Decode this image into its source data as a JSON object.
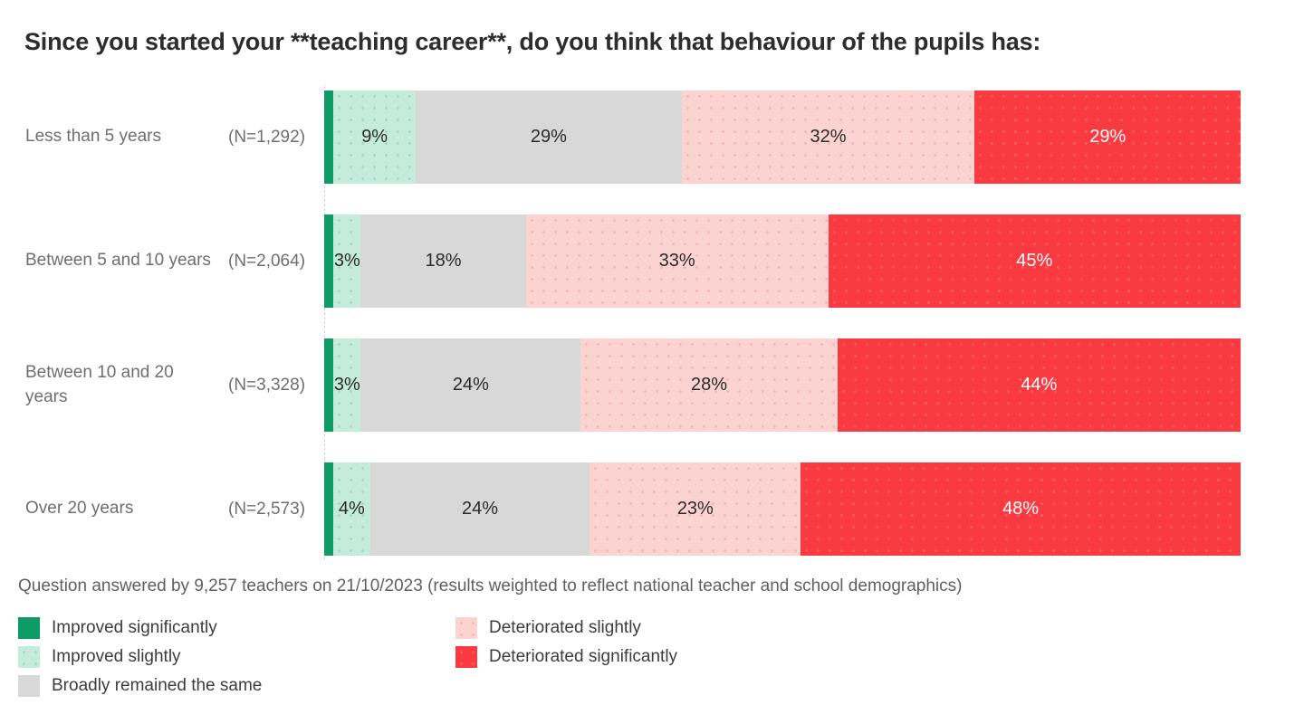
{
  "title": "Since you started your **teaching career**, do you think that behaviour of the pupils has:",
  "footnote": "Question answered by 9,257 teachers on 21/10/2023 (results weighted to reflect national teacher and school demographics)",
  "colors": {
    "improved_significantly": "#0e9b66",
    "improved_slightly": "#c4ebdb",
    "broadly_remained_the_same": "#d8d8d8",
    "deteriorated_slightly": "#fbd4d1",
    "deteriorated_significantly": "#f93b41"
  },
  "chart_data": {
    "type": "bar",
    "orientation": "horizontal",
    "stacked": true,
    "title": "Since you started your **teaching career**, do you think that behaviour of the pupils has:",
    "categories": [
      "Less than 5 years",
      "Between 5 and 10 years",
      "Between 10 and 20 years",
      "Over 20 years"
    ],
    "category_sample_sizes": [
      "(N=1,292)",
      "(N=2,064)",
      "(N=3,328)",
      "(N=2,573)"
    ],
    "series": [
      {
        "name": "Improved significantly",
        "color": "#0e9b66",
        "values": [
          1,
          1,
          1,
          1
        ]
      },
      {
        "name": "Improved slightly",
        "color": "#c4ebdb",
        "values": [
          9,
          3,
          3,
          4
        ]
      },
      {
        "name": "Broadly remained the same",
        "color": "#d8d8d8",
        "values": [
          29,
          18,
          24,
          24
        ]
      },
      {
        "name": "Deteriorated slightly",
        "color": "#fbd4d1",
        "values": [
          32,
          33,
          28,
          23
        ]
      },
      {
        "name": "Deteriorated significantly",
        "color": "#f93b41",
        "values": [
          29,
          45,
          44,
          48
        ]
      }
    ],
    "xlim": [
      0,
      100
    ],
    "value_unit": "%",
    "data_labels": "shown inside segments; 1% segments unlabeled",
    "grid": false,
    "legend_position": "bottom-left, two columns"
  },
  "rows": [
    {
      "label": "Less than 5 years",
      "n": "(N=1,292)",
      "segments": [
        {
          "key": "improved_significantly",
          "value": 1,
          "label": ""
        },
        {
          "key": "improved_slightly",
          "value": 9,
          "label": "9%"
        },
        {
          "key": "broadly_remained_the_same",
          "value": 29,
          "label": "29%"
        },
        {
          "key": "deteriorated_slightly",
          "value": 32,
          "label": "32%"
        },
        {
          "key": "deteriorated_significantly",
          "value": 29,
          "label": "29%"
        }
      ]
    },
    {
      "label": "Between 5 and 10 years",
      "n": "(N=2,064)",
      "segments": [
        {
          "key": "improved_significantly",
          "value": 1,
          "label": ""
        },
        {
          "key": "improved_slightly",
          "value": 3,
          "label": "3%"
        },
        {
          "key": "broadly_remained_the_same",
          "value": 18,
          "label": "18%"
        },
        {
          "key": "deteriorated_slightly",
          "value": 33,
          "label": "33%"
        },
        {
          "key": "deteriorated_significantly",
          "value": 45,
          "label": "45%"
        }
      ]
    },
    {
      "label": "Between 10 and 20 years",
      "n": "(N=3,328)",
      "segments": [
        {
          "key": "improved_significantly",
          "value": 1,
          "label": ""
        },
        {
          "key": "improved_slightly",
          "value": 3,
          "label": "3%"
        },
        {
          "key": "broadly_remained_the_same",
          "value": 24,
          "label": "24%"
        },
        {
          "key": "deteriorated_slightly",
          "value": 28,
          "label": "28%"
        },
        {
          "key": "deteriorated_significantly",
          "value": 44,
          "label": "44%"
        }
      ]
    },
    {
      "label": "Over 20 years",
      "n": "(N=2,573)",
      "segments": [
        {
          "key": "improved_significantly",
          "value": 1,
          "label": ""
        },
        {
          "key": "improved_slightly",
          "value": 4,
          "label": "4%"
        },
        {
          "key": "broadly_remained_the_same",
          "value": 24,
          "label": "24%"
        },
        {
          "key": "deteriorated_slightly",
          "value": 23,
          "label": "23%"
        },
        {
          "key": "deteriorated_significantly",
          "value": 48,
          "label": "48%"
        }
      ]
    }
  ],
  "legend": {
    "items": [
      {
        "key": "improved_significantly",
        "label": "Improved significantly"
      },
      {
        "key": "improved_slightly",
        "label": "Improved slightly"
      },
      {
        "key": "broadly_remained_the_same",
        "label": "Broadly remained the same"
      },
      {
        "key": "deteriorated_slightly",
        "label": "Deteriorated slightly"
      },
      {
        "key": "deteriorated_significantly",
        "label": "Deteriorated significantly"
      }
    ]
  }
}
